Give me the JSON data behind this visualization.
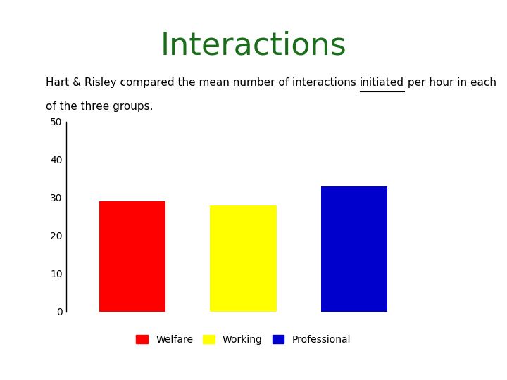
{
  "title": "Interactions",
  "title_color": "#1a6e1a",
  "title_fontsize": 32,
  "subtitle_line1_pre": "Hart & Risley compared the mean number of interactions ",
  "subtitle_line1_underlined": "initiated",
  "subtitle_line1_post": " per hour in each",
  "subtitle_line2": "of the three groups.",
  "subtitle_fontsize": 11,
  "categories": [
    "Welfare",
    "Working",
    "Professional"
  ],
  "values": [
    29,
    28,
    33
  ],
  "bar_colors": [
    "#ff0000",
    "#ffff00",
    "#0000cc"
  ],
  "legend_labels": [
    "Welfare",
    "Working",
    "Professional"
  ],
  "legend_colors": [
    "#ff0000",
    "#ffff00",
    "#0000cc"
  ],
  "ylim": [
    0,
    50
  ],
  "yticks": [
    0,
    10,
    20,
    30,
    40,
    50
  ],
  "background_color": "#ffffff",
  "bar_width": 0.6,
  "figsize": [
    7.2,
    5.4
  ],
  "dpi": 100
}
